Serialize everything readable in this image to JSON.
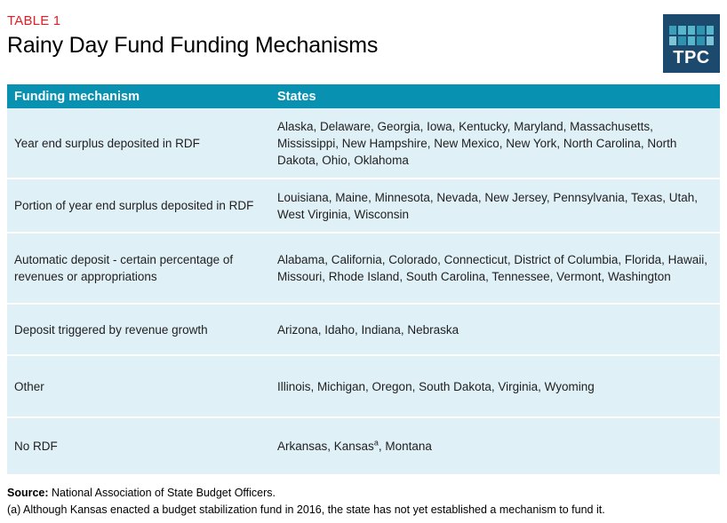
{
  "header": {
    "table_label": "TABLE 1",
    "title": "Rainy Day Fund Funding Mechanisms"
  },
  "logo": {
    "text": "TPC",
    "bg_color": "#1c4a6e",
    "grid_colors": [
      "#3a9fba",
      "#56b7cc",
      "#56b7cc",
      "#2e93ae",
      "#56b7cc",
      "#7cc5d6",
      "#2e93ae",
      "#56b7cc",
      "#2e93ae",
      "#7cc5d6"
    ]
  },
  "table": {
    "columns": [
      {
        "label": "Funding mechanism"
      },
      {
        "label": "States"
      }
    ],
    "rows": [
      {
        "mechanism": "Year end surplus deposited in RDF",
        "states": "Alaska, Delaware, Georgia, Iowa, Kentucky, Maryland, Massachusetts, Mississippi, New Hampshire, New Mexico, New York, North Carolina, North Dakota, Ohio, Oklahoma"
      },
      {
        "mechanism": "Portion of year end surplus deposited in RDF",
        "states": "Louisiana, Maine, Minnesota, Nevada, New Jersey, Pennsylvania, Texas, Utah, West Virginia, Wisconsin"
      },
      {
        "mechanism": "Automatic deposit - certain percentage of revenues or appropriations",
        "states": "Alabama, California, Colorado, Connecticut, District of Columbia, Florida, Hawaii, Missouri, Rhode Island, South Carolina, Tennessee, Vermont, Washington"
      },
      {
        "mechanism": "Deposit triggered by revenue growth",
        "states": "Arizona, Idaho, Indiana, Nebraska"
      },
      {
        "mechanism": "Other",
        "states": "Illinois, Michigan, Oregon, South Dakota, Virginia, Wyoming"
      },
      {
        "mechanism": "No RDF",
        "states": "Arkansas, Kansas",
        "states_note_marker": "a",
        "states_after": ", Montana"
      }
    ]
  },
  "footer": {
    "source_label": "Source:",
    "source_text": " National Association of State Budget Officers.",
    "note": "(a) Although Kansas enacted a budget stabilization fund in 2016, the state has not yet established a mechanism to fund it."
  },
  "colors": {
    "accent_red": "#e81c24",
    "table_header_bg": "#0991b2",
    "row_bg": "#e0f0f7",
    "row_divider": "#ffffff",
    "logo_navy": "#1c4a6e"
  }
}
